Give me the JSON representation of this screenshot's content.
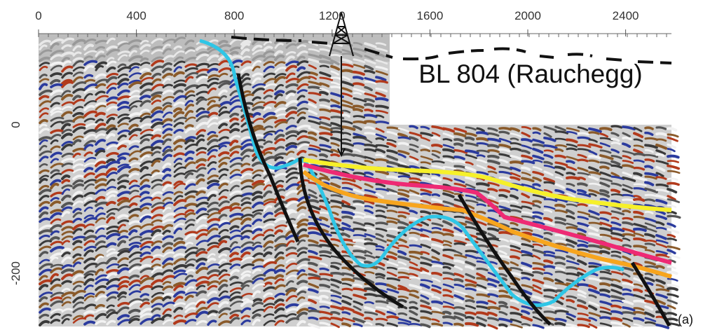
{
  "x_axis": {
    "ticks": [
      0,
      400,
      800,
      1200,
      1600,
      2000,
      2400
    ]
  },
  "y_axis": {
    "ticks": [
      0,
      -200
    ]
  },
  "section_label": "BL 804 (Rauchegg)",
  "panel_label": "(a)"
}
